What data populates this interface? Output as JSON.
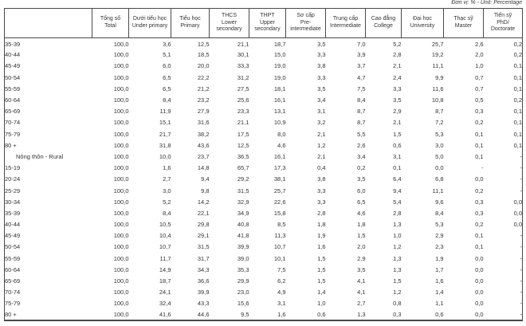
{
  "page": {
    "unit_note": "Đơn vị: % - Unit: Percentage"
  },
  "table": {
    "columns": [
      {
        "vi": "",
        "en": ""
      },
      {
        "vi": "Tổng số",
        "en": "Total"
      },
      {
        "vi": "Dưới tiểu học",
        "en": "Under primary"
      },
      {
        "vi": "Tiểu học",
        "en": "Primary"
      },
      {
        "vi": "THCS",
        "en": "Lower secondary"
      },
      {
        "vi": "THPT",
        "en": "Upper secondary"
      },
      {
        "vi": "Sơ cấp",
        "en": "Pre-intermediate"
      },
      {
        "vi": "Trung cấp",
        "en": "Intermediate"
      },
      {
        "vi": "Cao đẳng",
        "en": "College"
      },
      {
        "vi": "Đại học",
        "en": "University"
      },
      {
        "vi": "Thạc sỹ",
        "en": "Master"
      },
      {
        "vi": "Tiến sỹ",
        "en": "PhD/ Doctorate"
      }
    ],
    "rows": [
      {
        "label": "35-39",
        "type": "age",
        "values": [
          "100,0",
          "3,6",
          "12,5",
          "21,1",
          "18,7",
          "3,5",
          "7,0",
          "5,2",
          "25,7",
          "2,6",
          "0,2"
        ]
      },
      {
        "label": "40-44",
        "type": "age",
        "values": [
          "100,0",
          "5,1",
          "18,5",
          "30,1",
          "15,0",
          "3,3",
          "3,9",
          "2,8",
          "19,2",
          "2,0",
          "0,2"
        ]
      },
      {
        "label": "45-49",
        "type": "age",
        "values": [
          "100,0",
          "6,0",
          "20,0",
          "33,3",
          "19,0",
          "3,8",
          "3,7",
          "2,1",
          "11,1",
          "1,0",
          "0,1"
        ]
      },
      {
        "label": "50-54",
        "type": "age",
        "values": [
          "100,0",
          "6,5",
          "22,2",
          "31,2",
          "19,0",
          "3,3",
          "4,7",
          "2,4",
          "9,9",
          "0,7",
          "0,1"
        ]
      },
      {
        "label": "55-59",
        "type": "age",
        "values": [
          "100,0",
          "6,5",
          "21,2",
          "27,5",
          "18,1",
          "3,5",
          "7,5",
          "3,3",
          "11,6",
          "0,7",
          "0,1"
        ]
      },
      {
        "label": "60-64",
        "type": "age",
        "values": [
          "100,0",
          "8,4",
          "23,2",
          "25,6",
          "16,1",
          "3,4",
          "8,4",
          "3,5",
          "10,8",
          "0,5",
          "0,2"
        ]
      },
      {
        "label": "65-69",
        "type": "age",
        "values": [
          "100,0",
          "11,9",
          "27,9",
          "23,3",
          "13,1",
          "3,1",
          "8,7",
          "2,9",
          "8,7",
          "0,3",
          "0,1"
        ]
      },
      {
        "label": "70-74",
        "type": "age",
        "values": [
          "100,0",
          "15,1",
          "31,6",
          "21,1",
          "10,9",
          "3,2",
          "8,7",
          "2,1",
          "7,2",
          "0,2",
          "0,1"
        ]
      },
      {
        "label": "75-79",
        "type": "age",
        "values": [
          "100,0",
          "21,7",
          "38,2",
          "17,5",
          "8,0",
          "2,1",
          "5,5",
          "1,5",
          "5,3",
          "0,1",
          "0,1"
        ]
      },
      {
        "label": "80 +",
        "type": "age",
        "values": [
          "100,0",
          "31,8",
          "43,6",
          "12,5",
          "4,6",
          "1,2",
          "2,6",
          "0,6",
          "3,0",
          "0,1",
          "0,1"
        ]
      },
      {
        "label": "Nông thôn - Rural",
        "type": "section",
        "values": [
          "100,0",
          "10,0",
          "23,7",
          "36,5",
          "16,1",
          "2,1",
          "3,4",
          "3,1",
          "5,0",
          "0,1",
          "-"
        ]
      },
      {
        "label": "15-19",
        "type": "age",
        "values": [
          "100,0",
          "1,6",
          "14,8",
          "65,7",
          "17,3",
          "0,4",
          "0,2",
          "0,1",
          "0,0",
          "-",
          "-"
        ]
      },
      {
        "label": "20-24",
        "type": "age",
        "values": [
          "100,0",
          "2,7",
          "9,4",
          "29,2",
          "38,1",
          "3,8",
          "3,5",
          "6,4",
          "6,8",
          "0,0",
          "-"
        ]
      },
      {
        "label": "25-29",
        "type": "age",
        "values": [
          "100,0",
          "3,0",
          "9,8",
          "31,5",
          "25,7",
          "3,3",
          "6,0",
          "9,4",
          "11,1",
          "0,2",
          "-"
        ]
      },
      {
        "label": "30-34",
        "type": "age",
        "values": [
          "100,0",
          "5,2",
          "14,2",
          "32,9",
          "22,6",
          "3,3",
          "6,5",
          "5,4",
          "9,6",
          "0,3",
          "0,0"
        ]
      },
      {
        "label": "35-39",
        "type": "age",
        "values": [
          "100,0",
          "8,4",
          "22,1",
          "34,9",
          "15,8",
          "2,8",
          "4,6",
          "2,8",
          "8,4",
          "0,3",
          "0,0"
        ]
      },
      {
        "label": "40-44",
        "type": "age",
        "values": [
          "100,0",
          "10,5",
          "29,8",
          "40,8",
          "8,5",
          "1,8",
          "1,8",
          "1,3",
          "5,3",
          "0,2",
          "0,0"
        ]
      },
      {
        "label": "45-49",
        "type": "age",
        "values": [
          "100,0",
          "10,4",
          "29,1",
          "41,8",
          "11,3",
          "1,9",
          "1,5",
          "1,0",
          "2,9",
          "0,1",
          "-"
        ]
      },
      {
        "label": "50-54",
        "type": "age",
        "values": [
          "100,0",
          "10,7",
          "31,5",
          "39,9",
          "10,7",
          "1,6",
          "2,0",
          "1,2",
          "2,3",
          "0,1",
          "-"
        ]
      },
      {
        "label": "55-59",
        "type": "age",
        "values": [
          "100,0",
          "11,7",
          "31,7",
          "39,0",
          "10,1",
          "1,5",
          "2,9",
          "1,3",
          "1,9",
          "0,0",
          "-"
        ]
      },
      {
        "label": "60-64",
        "type": "age",
        "values": [
          "100,0",
          "14,9",
          "34,3",
          "35,3",
          "7,5",
          "1,5",
          "3,5",
          "1,3",
          "1,7",
          "0,0",
          "-"
        ]
      },
      {
        "label": "65-69",
        "type": "age",
        "values": [
          "100,0",
          "18,7",
          "36,6",
          "29,9",
          "6,2",
          "1,5",
          "4,1",
          "1,5",
          "1,6",
          "0,0",
          "-"
        ]
      },
      {
        "label": "70-74",
        "type": "age",
        "values": [
          "100,0",
          "24,1",
          "39,9",
          "23,0",
          "4,9",
          "1,4",
          "4,1",
          "1,2",
          "1,4",
          "0,0",
          "-"
        ]
      },
      {
        "label": "75-79",
        "type": "age",
        "values": [
          "100,0",
          "32,4",
          "43,3",
          "15,6",
          "3,1",
          "1,0",
          "2,7",
          "0,8",
          "1,1",
          "0,0",
          "-"
        ]
      },
      {
        "label": "80 +",
        "type": "age",
        "values": [
          "100,0",
          "41,6",
          "44,6",
          "9,5",
          "1,6",
          "0,6",
          "1,3",
          "0,3",
          "0,6",
          "0,0",
          "-"
        ]
      }
    ]
  }
}
